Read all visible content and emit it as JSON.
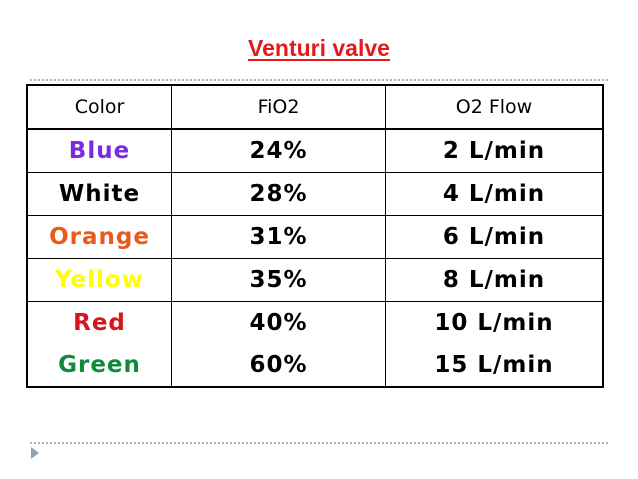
{
  "title": "Venturi valve",
  "table": {
    "headers": [
      "Color",
      "FiO2",
      "O2 Flow"
    ],
    "rows": [
      {
        "color": "Blue",
        "color_hex": "#7a2be0",
        "fio2": "24%",
        "flow": "2 L/min"
      },
      {
        "color": "White",
        "color_hex": "#000000",
        "fio2": "28%",
        "flow": "4 L/min"
      },
      {
        "color": "Orange",
        "color_hex": "#ea5a1b",
        "fio2": "31%",
        "flow": "6 L/min"
      },
      {
        "color": "Yellow",
        "color_hex": "#ffff00",
        "fio2": "35%",
        "flow": "8 L/min"
      },
      {
        "color": "Red",
        "color_hex": "#d8141e",
        "fio2": "40%",
        "flow": "10 L/min"
      },
      {
        "color": "Green",
        "color_hex": "#108a3a",
        "fio2": "60%",
        "flow": "15 L/min"
      }
    ]
  },
  "decorations": {
    "divider_color": "#a6b7c3",
    "bullet_icon": "triangle-bullet-icon"
  }
}
